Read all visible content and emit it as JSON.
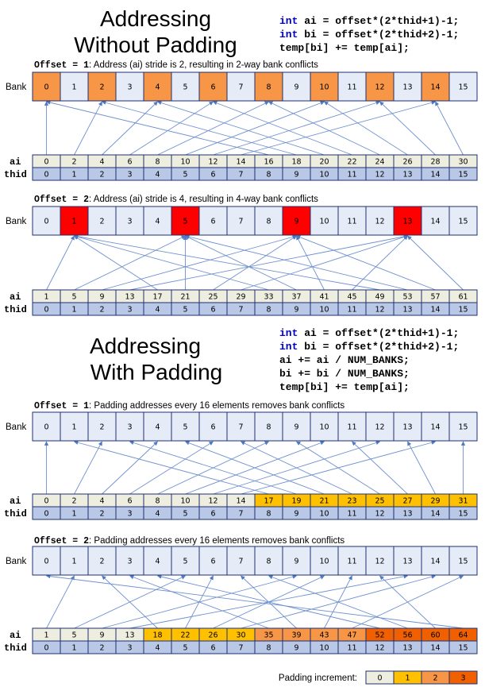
{
  "colors": {
    "bank_default": "#e6ecf7",
    "bank_conflict_2way": "#f79646",
    "bank_conflict_4way": "#ff0000",
    "ai_default": "#eeeee0",
    "thid": "#b8c8e6",
    "pad_0": "#eeeee0",
    "pad_1": "#ffc000",
    "pad_2": "#f79646",
    "pad_3": "#f06000",
    "arrow": "#6f90d0"
  },
  "labels": {
    "bank": "Bank",
    "ai": "ai",
    "thid": "thid"
  },
  "top": {
    "title_lines": [
      "Addressing",
      "Without Padding"
    ],
    "code": [
      {
        "kw": "int",
        "text": " ai = offset*(2*thid+1)-1;"
      },
      {
        "kw": "int",
        "text": " bi = offset*(2*thid+2)-1;"
      },
      {
        "kw": "",
        "text": "temp[bi] += temp[ai];"
      }
    ]
  },
  "bottom": {
    "title_lines": [
      "Addressing",
      "With Padding"
    ],
    "code": [
      {
        "kw": "int",
        "text": " ai = offset*(2*thid+1)-1;"
      },
      {
        "kw": "int",
        "text": " bi = offset*(2*thid+2)-1;"
      },
      {
        "kw": "",
        "text": "ai += ai / NUM_BANKS;"
      },
      {
        "kw": "",
        "text": "bi += bi / NUM_BANKS;"
      },
      {
        "kw": "",
        "text": "temp[bi] += temp[ai];"
      }
    ]
  },
  "sections": [
    {
      "caption_code": "Offset = 1",
      "caption_text": ": Address (ai) stride is 2, resulting in 2-way bank conflicts",
      "banks": [
        "0",
        "1",
        "2",
        "3",
        "4",
        "5",
        "6",
        "7",
        "8",
        "9",
        "10",
        "11",
        "12",
        "13",
        "14",
        "15"
      ],
      "bank_highlight": [
        0,
        2,
        4,
        6,
        8,
        10,
        12,
        14
      ],
      "bank_highlight_color": "bank_conflict_2way",
      "ai": [
        "0",
        "2",
        "4",
        "6",
        "8",
        "10",
        "12",
        "14",
        "16",
        "18",
        "20",
        "22",
        "24",
        "26",
        "28",
        "30"
      ],
      "ai_colors": [
        0,
        0,
        0,
        0,
        0,
        0,
        0,
        0,
        0,
        0,
        0,
        0,
        0,
        0,
        0,
        0
      ],
      "thid": [
        "0",
        "1",
        "2",
        "3",
        "4",
        "5",
        "6",
        "7",
        "8",
        "9",
        "10",
        "11",
        "12",
        "13",
        "14",
        "15"
      ],
      "arrows": [
        0,
        2,
        4,
        6,
        8,
        10,
        12,
        14,
        0,
        2,
        4,
        6,
        8,
        10,
        12,
        14
      ]
    },
    {
      "caption_code": "Offset = 2",
      "caption_text": ": Address (ai) stride is 4, resulting in 4-way bank conflicts",
      "banks": [
        "0",
        "1",
        "2",
        "3",
        "4",
        "5",
        "6",
        "7",
        "8",
        "9",
        "10",
        "11",
        "12",
        "13",
        "14",
        "15"
      ],
      "bank_highlight": [
        1,
        5,
        9,
        13
      ],
      "bank_highlight_color": "bank_conflict_4way",
      "ai": [
        "1",
        "5",
        "9",
        "13",
        "17",
        "21",
        "25",
        "29",
        "33",
        "37",
        "41",
        "45",
        "49",
        "53",
        "57",
        "61"
      ],
      "ai_colors": [
        0,
        0,
        0,
        0,
        0,
        0,
        0,
        0,
        0,
        0,
        0,
        0,
        0,
        0,
        0,
        0
      ],
      "thid": [
        "0",
        "1",
        "2",
        "3",
        "4",
        "5",
        "6",
        "7",
        "8",
        "9",
        "10",
        "11",
        "12",
        "13",
        "14",
        "15"
      ],
      "arrows": [
        1,
        5,
        9,
        13,
        1,
        5,
        9,
        13,
        1,
        5,
        9,
        13,
        1,
        5,
        9,
        13
      ]
    },
    {
      "caption_code": "Offset = 1",
      "caption_text": ": Padding addresses every 16 elements removes bank conflicts",
      "banks": [
        "0",
        "1",
        "2",
        "3",
        "4",
        "5",
        "6",
        "7",
        "8",
        "9",
        "10",
        "11",
        "12",
        "13",
        "14",
        "15"
      ],
      "bank_highlight": [],
      "bank_highlight_color": "bank_default",
      "ai": [
        "0",
        "2",
        "4",
        "6",
        "8",
        "10",
        "12",
        "14",
        "17",
        "19",
        "21",
        "23",
        "25",
        "27",
        "29",
        "31"
      ],
      "ai_colors": [
        0,
        0,
        0,
        0,
        0,
        0,
        0,
        0,
        1,
        1,
        1,
        1,
        1,
        1,
        1,
        1
      ],
      "thid": [
        "0",
        "1",
        "2",
        "3",
        "4",
        "5",
        "6",
        "7",
        "8",
        "9",
        "10",
        "11",
        "12",
        "13",
        "14",
        "15"
      ],
      "arrows": [
        0,
        2,
        4,
        6,
        8,
        10,
        12,
        14,
        1,
        3,
        5,
        7,
        9,
        11,
        13,
        15
      ]
    },
    {
      "caption_code": "Offset = 2",
      "caption_text": ": Padding addresses every 16 elements removes bank conflicts",
      "banks": [
        "0",
        "1",
        "2",
        "3",
        "4",
        "5",
        "6",
        "7",
        "8",
        "9",
        "10",
        "11",
        "12",
        "13",
        "14",
        "15"
      ],
      "bank_highlight": [],
      "bank_highlight_color": "bank_default",
      "ai": [
        "1",
        "5",
        "9",
        "13",
        "18",
        "22",
        "26",
        "30",
        "35",
        "39",
        "43",
        "47",
        "52",
        "56",
        "60",
        "64"
      ],
      "ai_colors": [
        0,
        0,
        0,
        0,
        1,
        1,
        1,
        1,
        2,
        2,
        2,
        2,
        3,
        3,
        3,
        3
      ],
      "thid": [
        "0",
        "1",
        "2",
        "3",
        "4",
        "5",
        "6",
        "7",
        "8",
        "9",
        "10",
        "11",
        "12",
        "13",
        "14",
        "15"
      ],
      "arrows": [
        1,
        5,
        9,
        13,
        2,
        6,
        10,
        14,
        3,
        7,
        11,
        15,
        4,
        8,
        12,
        0
      ]
    }
  ],
  "legend": {
    "label": "Padding increment:",
    "values": [
      "0",
      "1",
      "2",
      "3"
    ]
  }
}
